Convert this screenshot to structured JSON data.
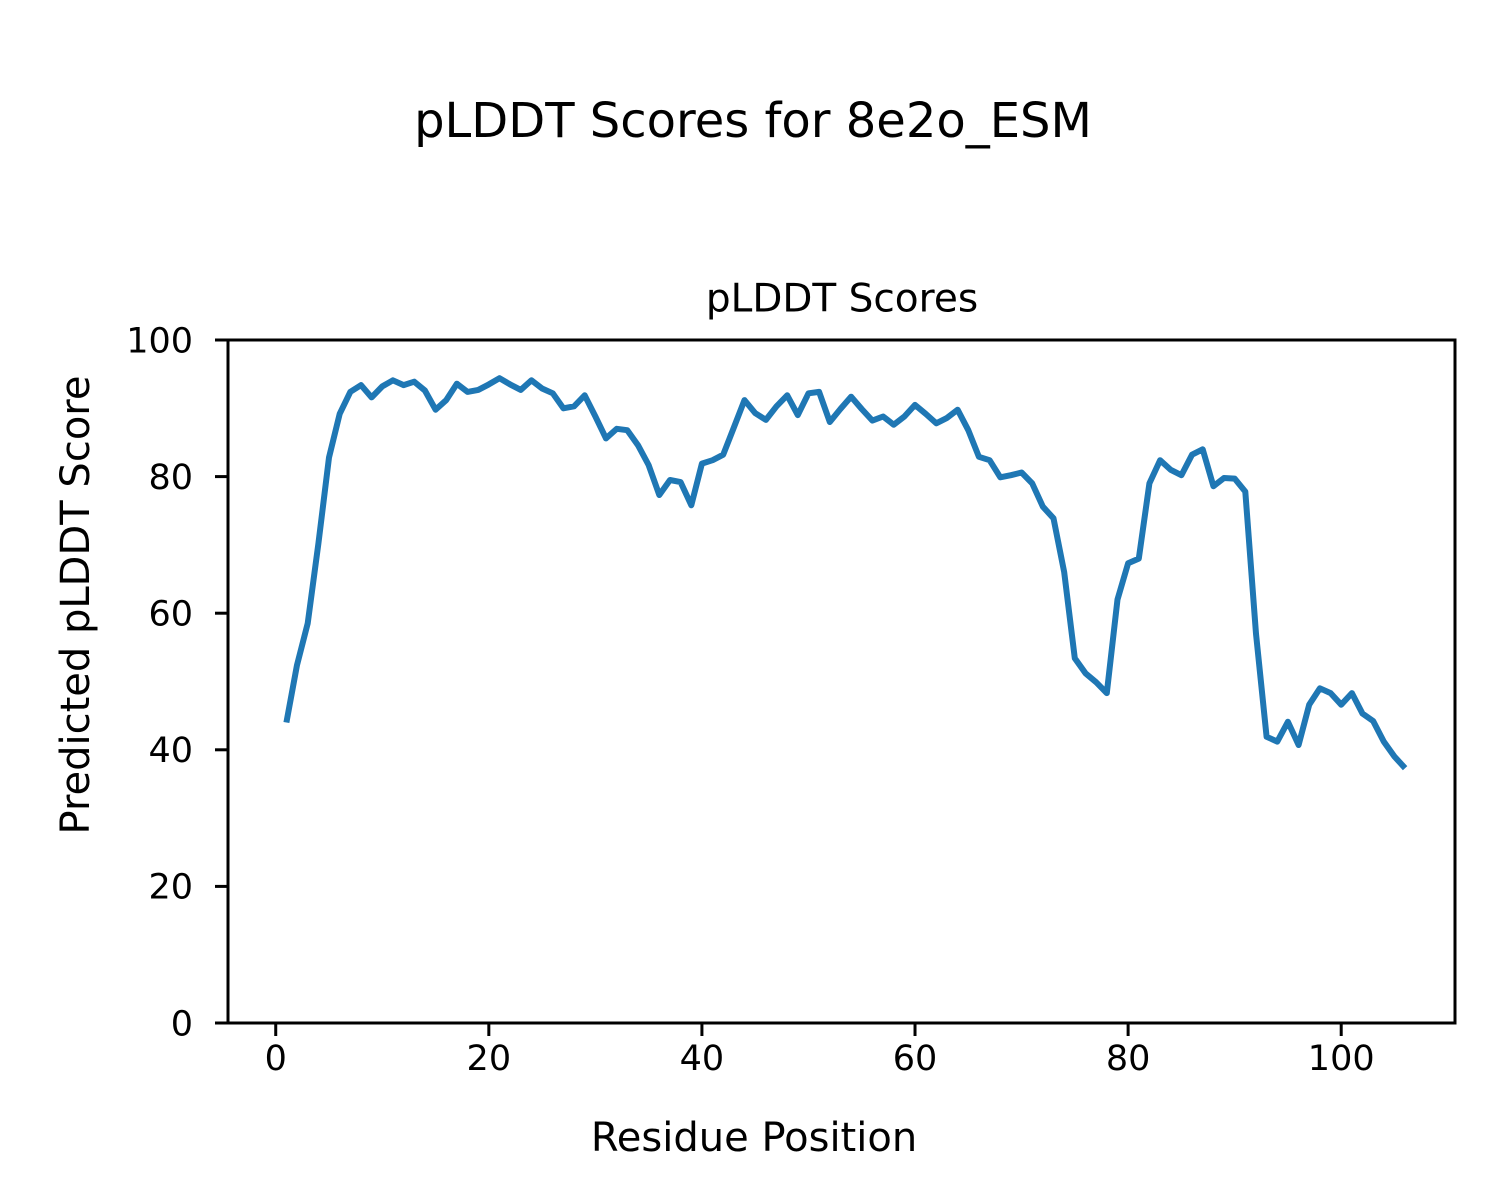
{
  "figure": {
    "suptitle": "pLDDT Scores for 8e2o_ESM",
    "background_color": "#ffffff",
    "text_color": "#000000",
    "spine_color": "#000000"
  },
  "chart_data": {
    "type": "line",
    "title": "pLDDT Scores",
    "xlabel": "Residue Position",
    "ylabel": "Predicted pLDDT Score",
    "grid": false,
    "legend_visible": false,
    "xlim": [
      -4.48,
      110.68
    ],
    "ylim": [
      0,
      100
    ],
    "x_ticks": [
      0,
      20,
      40,
      60,
      80,
      100
    ],
    "x_tick_labels": [
      "0",
      "20",
      "40",
      "60",
      "80",
      "100"
    ],
    "y_ticks": [
      0,
      20,
      40,
      60,
      80,
      100
    ],
    "y_tick_labels": [
      "0",
      "20",
      "40",
      "60",
      "80",
      "100"
    ],
    "series": [
      {
        "name": "pLDDT",
        "color": "#1f77b4",
        "line_width": 6,
        "x_description": "residue position, 1 through 106",
        "x": [
          1,
          2,
          3,
          4,
          5,
          6,
          7,
          8,
          9,
          10,
          11,
          12,
          13,
          14,
          15,
          16,
          17,
          18,
          19,
          20,
          21,
          22,
          23,
          24,
          25,
          26,
          27,
          28,
          29,
          30,
          31,
          32,
          33,
          34,
          35,
          36,
          37,
          38,
          39,
          40,
          41,
          42,
          43,
          44,
          45,
          46,
          47,
          48,
          49,
          50,
          51,
          52,
          53,
          54,
          55,
          56,
          57,
          58,
          59,
          60,
          61,
          62,
          63,
          64,
          65,
          66,
          67,
          68,
          69,
          70,
          71,
          72,
          73,
          74,
          75,
          76,
          77,
          78,
          79,
          80,
          81,
          82,
          83,
          84,
          85,
          86,
          87,
          88,
          89,
          90,
          91,
          92,
          93,
          94,
          95,
          96,
          97,
          98,
          99,
          100,
          101,
          102,
          103,
          104,
          105,
          106
        ],
        "y": [
          44.0,
          52.4,
          58.5,
          70.2,
          82.8,
          89.2,
          92.4,
          93.4,
          91.6,
          93.2,
          94.1,
          93.4,
          93.9,
          92.6,
          89.8,
          91.2,
          93.6,
          92.4,
          92.7,
          93.5,
          94.4,
          93.5,
          92.7,
          94.1,
          92.9,
          92.2,
          90.0,
          90.3,
          91.9,
          88.8,
          85.6,
          87.0,
          86.8,
          84.6,
          81.7,
          77.3,
          79.5,
          79.2,
          75.8,
          81.9,
          82.4,
          83.2,
          87.2,
          91.2,
          89.3,
          88.3,
          90.3,
          91.9,
          89.0,
          92.2,
          92.4,
          88.0,
          89.9,
          91.7,
          89.9,
          88.2,
          88.8,
          87.6,
          88.8,
          90.5,
          89.2,
          87.8,
          88.6,
          89.8,
          86.8,
          82.9,
          82.4,
          79.9,
          80.2,
          80.6,
          79.0,
          75.6,
          73.9,
          66.0,
          53.4,
          51.2,
          49.9,
          48.3,
          62.0,
          67.3,
          68.0,
          79.0,
          82.4,
          81.0,
          80.2,
          83.2,
          84.0,
          78.6,
          79.8,
          79.7,
          77.8,
          57.0,
          41.9,
          41.2,
          44.1,
          40.7,
          46.6,
          49.0,
          48.3,
          46.6,
          48.3,
          45.3,
          44.2,
          41.2,
          39.0,
          37.3
        ]
      }
    ]
  }
}
